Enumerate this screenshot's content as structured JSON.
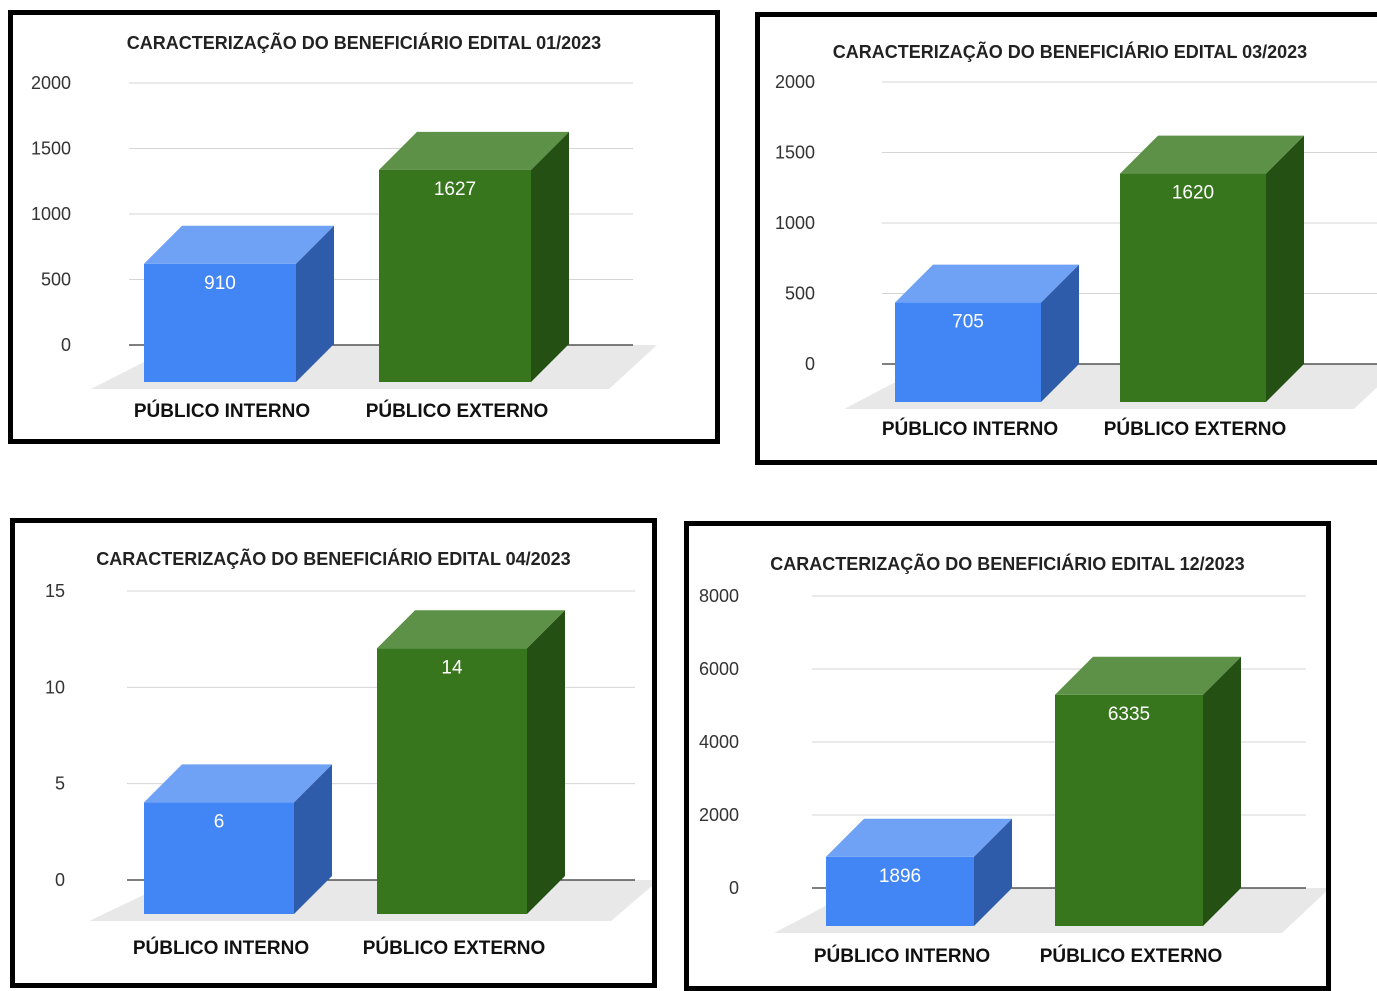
{
  "colors": {
    "interno_front": "#4285f4",
    "interno_top": "#6fa2f5",
    "interno_side": "#2f5bab",
    "externo_front": "#38761d",
    "externo_top": "#5e9148",
    "externo_side": "#245014",
    "floor": "#e8e8e8",
    "grid": "#d4d4d4",
    "baseline": "#333333"
  },
  "chart_data": [
    {
      "type": "bar",
      "title": "CARACTERIZAÇÃO DO BENEFICIÁRIO EDITAL 01/2023",
      "categories": [
        "PÚBLICO INTERNO",
        "PÚBLICO EXTERNO"
      ],
      "values": [
        910,
        1627
      ],
      "data_labels": [
        "910",
        "1627"
      ],
      "ylim": [
        0,
        2000
      ],
      "yticks": [
        0,
        500,
        1000,
        1500,
        2000
      ],
      "ytick_labels": [
        "0",
        "500",
        "1000",
        "1500",
        "2000"
      ],
      "grid": true,
      "style": "3d"
    },
    {
      "type": "bar",
      "title": "CARACTERIZAÇÃO DO BENEFICIÁRIO EDITAL 03/2023",
      "categories": [
        "PÚBLICO INTERNO",
        "PÚBLICO EXTERNO"
      ],
      "values": [
        705,
        1620
      ],
      "data_labels": [
        "705",
        "1620"
      ],
      "ylim": [
        0,
        2000
      ],
      "yticks": [
        0,
        500,
        1000,
        1500,
        2000
      ],
      "ytick_labels": [
        "0",
        "500",
        "1000",
        "1500",
        "2000"
      ],
      "grid": true,
      "style": "3d"
    },
    {
      "type": "bar",
      "title": "CARACTERIZAÇÃO DO BENEFICIÁRIO EDITAL 04/2023",
      "categories": [
        "PÚBLICO INTERNO",
        "PÚBLICO EXTERNO"
      ],
      "values": [
        6,
        14
      ],
      "data_labels": [
        "6",
        "14"
      ],
      "ylim": [
        0,
        15
      ],
      "yticks": [
        0,
        5,
        10,
        15
      ],
      "ytick_labels": [
        "0",
        "5",
        "10",
        "15"
      ],
      "grid": true,
      "style": "3d"
    },
    {
      "type": "bar",
      "title": "CARACTERIZAÇÃO DO BENEFICIÁRIO EDITAL 12/2023",
      "categories": [
        "PÚBLICO INTERNO",
        "PÚBLICO EXTERNO"
      ],
      "values": [
        1896,
        6335
      ],
      "data_labels": [
        "1896",
        "6335"
      ],
      "ylim": [
        0,
        8000
      ],
      "yticks": [
        0,
        2000,
        4000,
        6000,
        8000
      ],
      "ytick_labels": [
        "0",
        "2000",
        "4000",
        "6000",
        "8000"
      ],
      "grid": true,
      "style": "3d"
    }
  ]
}
